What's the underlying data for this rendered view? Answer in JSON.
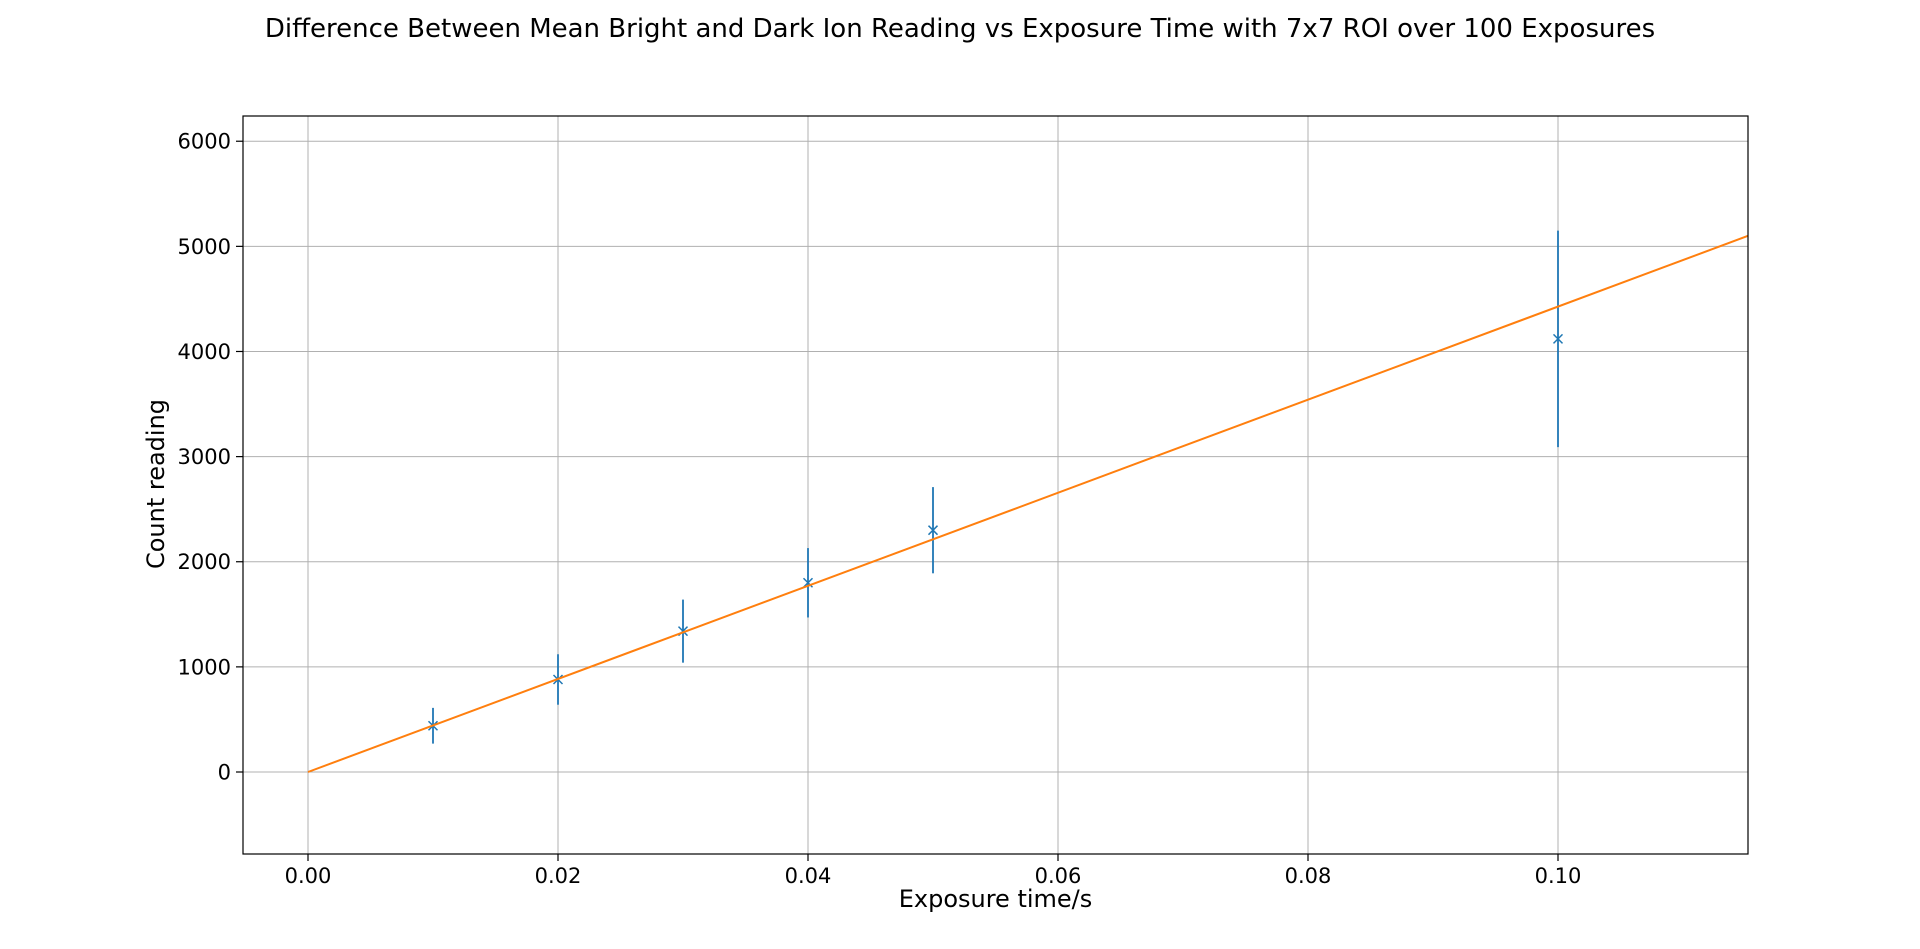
{
  "chart_data": {
    "type": "scatter",
    "title": "Difference Between Mean Bright and Dark Ion Reading vs Exposure Time with 7x7 ROI over 100 Exposures",
    "xlabel": "Exposure time/s",
    "ylabel": "Count reading",
    "xlim": [
      -0.0052,
      0.1152
    ],
    "ylim": [
      -780,
      6240
    ],
    "xticks": [
      0.0,
      0.02,
      0.04,
      0.06,
      0.08,
      0.1
    ],
    "xtick_labels": [
      "0.00",
      "0.02",
      "0.04",
      "0.06",
      "0.08",
      "0.10"
    ],
    "yticks": [
      0,
      1000,
      2000,
      3000,
      4000,
      5000,
      6000
    ],
    "ytick_labels": [
      "0",
      "1000",
      "2000",
      "3000",
      "4000",
      "5000",
      "6000"
    ],
    "grid": true,
    "series": [
      {
        "type": "errorbar",
        "marker": "x",
        "color": "#1f77b4",
        "x": [
          0.01,
          0.02,
          0.03,
          0.04,
          0.05,
          0.1
        ],
        "y": [
          440,
          880,
          1340,
          1800,
          2300,
          4120
        ],
        "yerr": [
          170,
          240,
          300,
          330,
          410,
          1030
        ]
      },
      {
        "type": "line",
        "color": "#ff7f0e",
        "x": [
          0.0,
          0.1152
        ],
        "y": [
          0,
          5100
        ]
      }
    ]
  }
}
